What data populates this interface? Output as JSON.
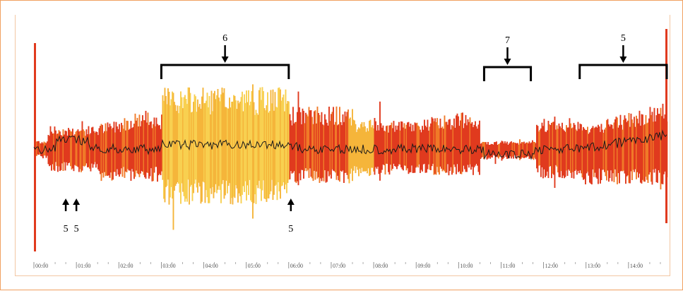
{
  "chart_data": {
    "type": "area",
    "x_ticks": [
      "00:00",
      "01:00",
      "02:00",
      "03:00",
      "04:00",
      "05:00",
      "06:00",
      "07:00",
      "08:00",
      "09:00",
      "10:00",
      "11:00",
      "12:00",
      "13:00",
      "14:00"
    ],
    "x_range_hours": [
      0,
      14.9
    ],
    "colors": {
      "band_hot": "#e03a1e",
      "band_mid": "#f07a28",
      "band_warm": "#f5b53a",
      "band_light": "#f8d050",
      "center_line": "#1a1a1a",
      "bracket": "#000000"
    },
    "annotations": [
      {
        "label": "6",
        "type": "bracket",
        "start_hour": 3.0,
        "end_hour": 6.0
      },
      {
        "label": "7",
        "type": "bracket",
        "start_hour": 10.6,
        "end_hour": 11.7
      },
      {
        "label": "5",
        "type": "bracket",
        "start_hour": 12.85,
        "end_hour": 14.9
      },
      {
        "label": "5",
        "type": "arrow_up",
        "hour": 0.75
      },
      {
        "label": "5",
        "type": "arrow_up",
        "hour": 1.0
      },
      {
        "label": "5",
        "type": "arrow_up",
        "hour": 6.05
      }
    ]
  }
}
